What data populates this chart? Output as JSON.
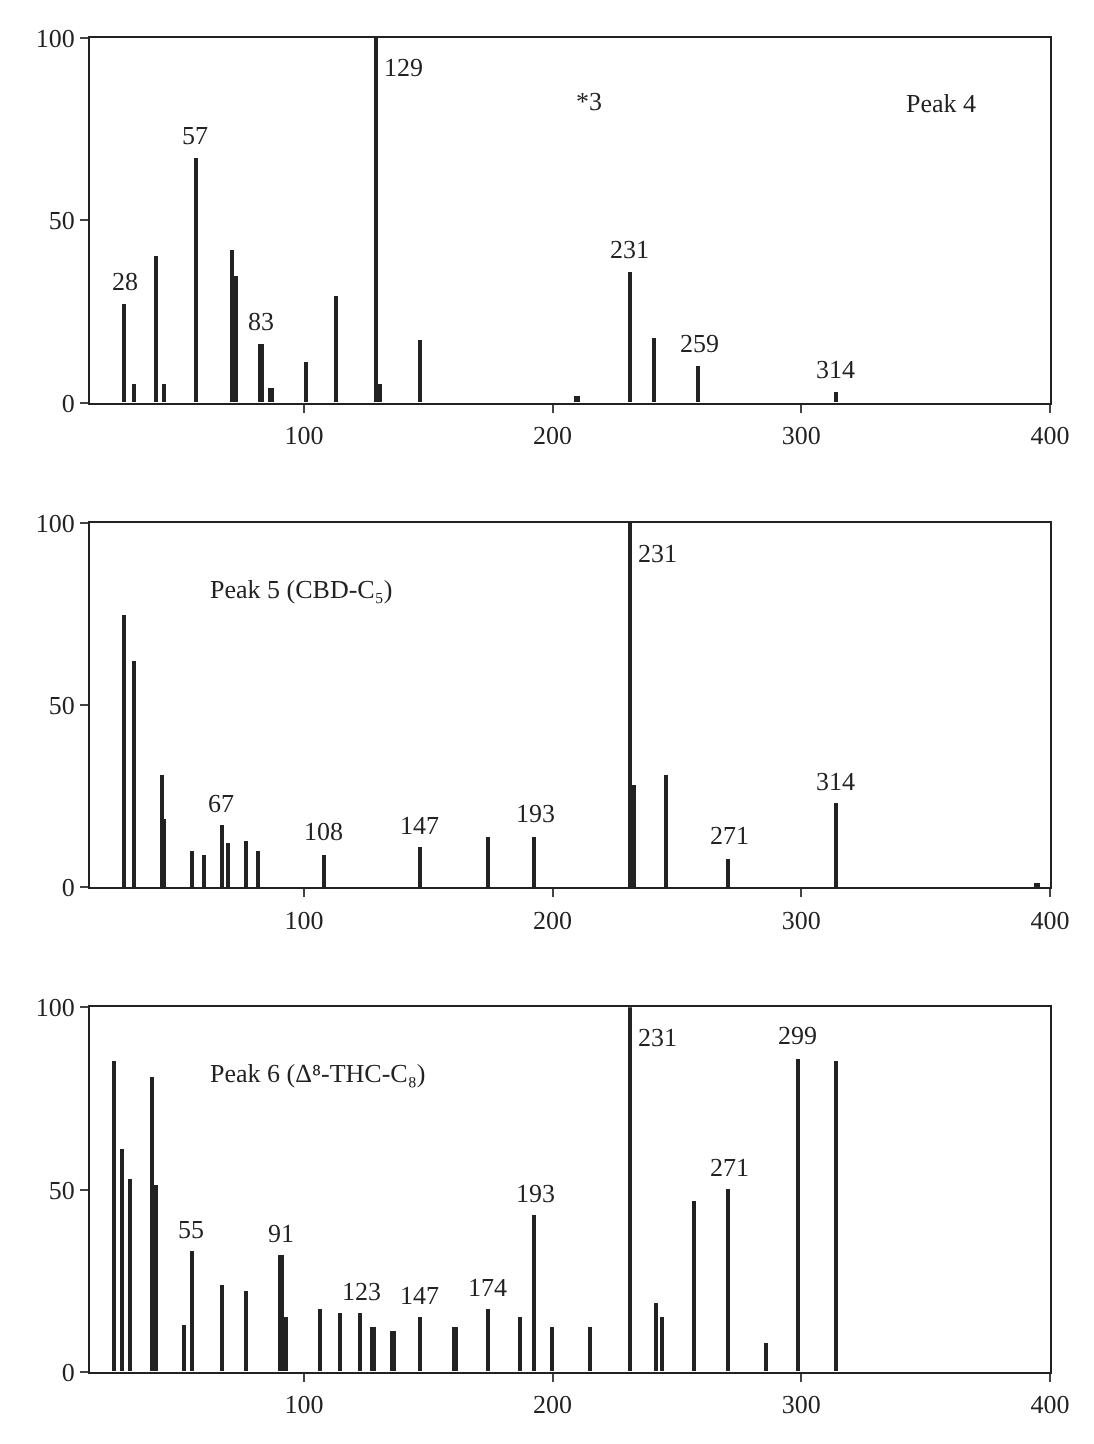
{
  "chart_data": [
    {
      "type": "bar",
      "title": "Peak 4",
      "x": [
        28,
        32,
        41,
        44,
        57,
        71,
        73,
        83,
        87,
        101,
        113,
        129,
        131,
        147,
        210,
        231,
        241,
        259,
        314
      ],
      "values": [
        27,
        5,
        40,
        5,
        67,
        42,
        35,
        16,
        4,
        11,
        29,
        100,
        5,
        17,
        2,
        36,
        18,
        10,
        3
      ],
      "color": "#222222",
      "xlim": [
        14,
        400
      ],
      "xticks": [
        100,
        200,
        300,
        400
      ],
      "ylim": [
        0,
        100
      ],
      "yticks": [
        0,
        50,
        100
      ],
      "annotations": [
        "*3",
        {
          "text": "28",
          "x": 28,
          "y": 27
        },
        {
          "text": "57",
          "x": 57,
          "y": 67
        },
        {
          "text": "83",
          "x": 83,
          "y": 16
        },
        {
          "text": "129",
          "x": 129,
          "y": 100
        },
        {
          "text": "231",
          "x": 231,
          "y": 36
        },
        {
          "text": "259",
          "x": 259,
          "y": 10
        },
        {
          "text": "314",
          "x": 314,
          "y": 3
        }
      ]
    },
    {
      "type": "bar",
      "title": "Peak 5 (CBD-C₅)",
      "x": [
        28,
        32,
        43,
        44,
        55,
        60,
        67,
        70,
        77,
        82,
        108,
        147,
        174,
        193,
        231,
        233,
        246,
        271,
        314,
        395
      ],
      "values": [
        75,
        62,
        31,
        19,
        10,
        9,
        17,
        12,
        13,
        10,
        9,
        11,
        14,
        14,
        100,
        28,
        31,
        8,
        23,
        1
      ],
      "color": "#222222",
      "xlim": [
        14,
        400
      ],
      "xticks": [
        100,
        200,
        300,
        400
      ],
      "ylim": [
        0,
        100
      ],
      "yticks": [
        0,
        50,
        100
      ],
      "annotations": [
        {
          "text": "67",
          "x": 67,
          "y": 17
        },
        {
          "text": "108",
          "x": 108,
          "y": 9
        },
        {
          "text": "147",
          "x": 147,
          "y": 11
        },
        {
          "text": "193",
          "x": 193,
          "y": 14
        },
        {
          "text": "231",
          "x": 231,
          "y": 100
        },
        {
          "text": "271",
          "x": 271,
          "y": 8
        },
        {
          "text": "314",
          "x": 314,
          "y": 23
        }
      ]
    },
    {
      "type": "bar",
      "title": "Peak 6 (Δ⁸-THC-C₈)",
      "x": [
        24,
        27,
        30,
        39,
        41,
        52,
        55,
        67,
        77,
        91,
        93,
        107,
        115,
        123,
        128,
        136,
        147,
        161,
        174,
        187,
        193,
        200,
        215,
        231,
        242,
        244,
        257,
        271,
        286,
        299,
        314
      ],
      "values": [
        85,
        61,
        53,
        81,
        51,
        13,
        33,
        24,
        22,
        32,
        15,
        17,
        16,
        16,
        12,
        11,
        15,
        12,
        17,
        15,
        43,
        12,
        12,
        100,
        19,
        15,
        47,
        50,
        8,
        86,
        85
      ],
      "color": "#222222",
      "xlim": [
        14,
        400
      ],
      "xticks": [
        100,
        200,
        300,
        400
      ],
      "ylim": [
        0,
        100
      ],
      "yticks": [
        0,
        50,
        100
      ],
      "annotations": [
        {
          "text": "55",
          "x": 55,
          "y": 33
        },
        {
          "text": "91",
          "x": 91,
          "y": 32
        },
        {
          "text": "123",
          "x": 123,
          "y": 16
        },
        {
          "text": "147",
          "x": 147,
          "y": 15
        },
        {
          "text": "174",
          "x": 174,
          "y": 17
        },
        {
          "text": "193",
          "x": 193,
          "y": 43
        },
        {
          "text": "231",
          "x": 231,
          "y": 100
        },
        {
          "text": "271",
          "x": 271,
          "y": 50
        },
        {
          "text": "299",
          "x": 299,
          "y": 86
        }
      ]
    }
  ]
}
